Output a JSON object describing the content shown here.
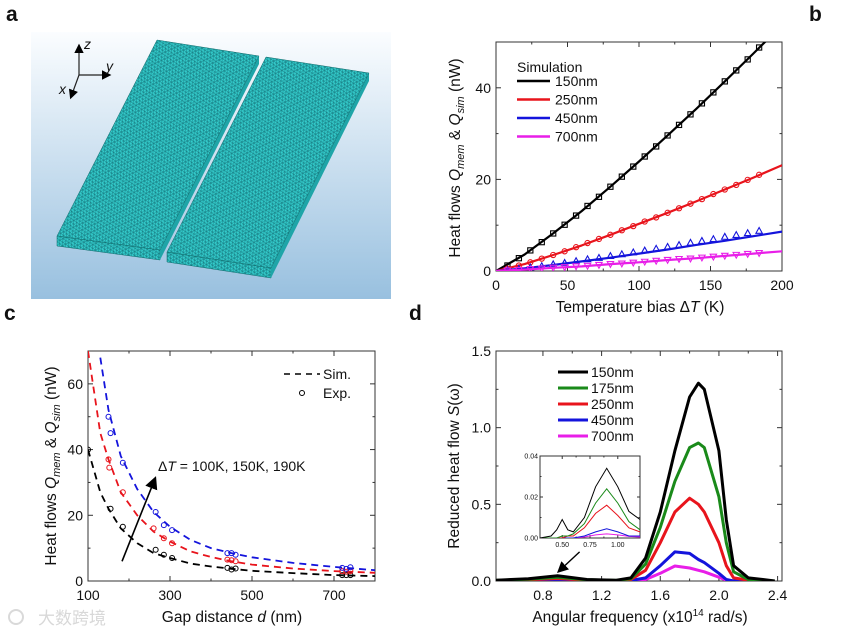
{
  "panels": {
    "a": "a",
    "b": "b",
    "c": "c",
    "d": "d"
  },
  "panel_a": {
    "axes_labels": {
      "z": "z",
      "y": "y",
      "x": "x"
    },
    "slab_color": "#2fc4c4",
    "mesh_color": "#0d5f63"
  },
  "watermark": "大数跨境",
  "chart_data": [
    {
      "type": "line",
      "panel": "b",
      "xlabel_parts": [
        "Temperature bias ",
        "Δ",
        "T",
        " (K)"
      ],
      "ylabel_parts": [
        "Heat flows ",
        "Q",
        "mem",
        " & ",
        "Q",
        "sim",
        " (nW)"
      ],
      "xlim": [
        0,
        200
      ],
      "ylim": [
        0,
        50
      ],
      "xticks": [
        0,
        50,
        100,
        150,
        200
      ],
      "xtick_labels": [
        "0",
        "50",
        "100",
        "150",
        "200"
      ],
      "yticks": [
        0,
        20,
        40
      ],
      "ytick_labels": [
        "0",
        "20",
        "40"
      ],
      "legend": {
        "title": "Simulation",
        "placement": "top-left"
      },
      "line_x": [
        0,
        20,
        40,
        60,
        80,
        100,
        120,
        140,
        160,
        180,
        200
      ],
      "marker_x": [
        8,
        16,
        24,
        32,
        40,
        48,
        56,
        64,
        72,
        80,
        88,
        96,
        104,
        112,
        120,
        128,
        136,
        144,
        152,
        160,
        168,
        176,
        184
      ],
      "series": [
        {
          "name": "150nm",
          "color": "#000000",
          "marker": "square",
          "line_y": [
            0,
            3.6,
            8.2,
            13.1,
            18.4,
            23.9,
            29.6,
            35.4,
            41.4,
            47.5,
            53.7
          ],
          "marker_y": [
            1.2,
            2.8,
            4.5,
            6.3,
            8.2,
            10.1,
            12.1,
            14.2,
            16.2,
            18.4,
            20.6,
            22.8,
            25,
            27.2,
            29.6,
            31.9,
            34.2,
            36.6,
            39,
            41.4,
            43.8,
            46.2,
            48.8
          ]
        },
        {
          "name": "250nm",
          "color": "#e8141c",
          "marker": "circle",
          "line_y": [
            0,
            1.5,
            3.5,
            5.6,
            7.9,
            10.3,
            12.7,
            15.2,
            17.8,
            20.4,
            23.1
          ],
          "marker_y": [
            0.5,
            1.2,
            1.9,
            2.7,
            3.5,
            4.3,
            5.2,
            6.1,
            7,
            7.9,
            8.9,
            9.8,
            10.8,
            11.7,
            12.7,
            13.7,
            14.7,
            15.7,
            16.8,
            17.8,
            18.8,
            19.9,
            21
          ]
        },
        {
          "name": "450nm",
          "color": "#1414dc",
          "marker": "triangle-up",
          "line_y": [
            0,
            0.6,
            1.3,
            2.1,
            2.9,
            3.8,
            4.7,
            5.7,
            6.6,
            7.6,
            8.6
          ],
          "marker_y": [
            0.2,
            0.5,
            0.8,
            1.1,
            1.5,
            1.8,
            2.2,
            2.6,
            2.9,
            3.3,
            3.7,
            4.1,
            4.5,
            4.9,
            5.3,
            5.7,
            6.2,
            6.6,
            7,
            7.5,
            7.9,
            8.3,
            8.8
          ]
        },
        {
          "name": "700nm",
          "color": "#e81ee8",
          "marker": "triangle-down",
          "line_y": [
            0,
            0.3,
            0.7,
            1,
            1.5,
            1.9,
            2.4,
            2.8,
            3.3,
            3.8,
            4.3
          ],
          "marker_y": [
            0.1,
            0.2,
            0.4,
            0.5,
            0.7,
            0.8,
            1,
            1.1,
            1.3,
            1.5,
            1.6,
            1.8,
            2,
            2.2,
            2.4,
            2.6,
            2.7,
            2.9,
            3.1,
            3.3,
            3.5,
            3.7,
            3.9
          ]
        }
      ]
    },
    {
      "type": "scatter",
      "panel": "c",
      "xlabel_parts": [
        "Gap distance ",
        "d",
        " (nm)"
      ],
      "ylabel_parts": [
        "Heat flows ",
        "Q",
        "mem",
        " & ",
        "Q",
        "sim",
        " (nW)"
      ],
      "xlim": [
        100,
        800
      ],
      "ylim": [
        0,
        70
      ],
      "xticks": [
        100,
        300,
        500,
        700
      ],
      "xtick_labels": [
        "100",
        "300",
        "500",
        "700"
      ],
      "yticks": [
        0,
        20,
        40,
        60
      ],
      "ytick_labels": [
        "0",
        "20",
        "40",
        "60"
      ],
      "legend": {
        "sim_label": "Sim.",
        "exp_label": "Exp.",
        "placement": "top-right"
      },
      "annotation": {
        "parts": [
          "Δ",
          "T",
          " = 100K, 150K, 190K"
        ],
        "arrow_from": [
          183,
          6
        ],
        "arrow_to": [
          263,
          31
        ]
      },
      "sim_x": [
        100,
        130,
        150,
        180,
        220,
        260,
        300,
        350,
        400,
        450,
        500,
        600,
        700,
        800
      ],
      "series": [
        {
          "color": "#000000",
          "sim_y": [
            40,
            27,
            22,
            16,
            11.5,
            8.5,
            7,
            5.3,
            4.4,
            3.7,
            3.1,
            2.4,
            1.8,
            1.5
          ],
          "exp_x": [
            100,
            155,
            185,
            265,
            285,
            305,
            440,
            450,
            460,
            720,
            730,
            740
          ],
          "exp_y": [
            40,
            22,
            16.5,
            9.5,
            8,
            7,
            4,
            3.5,
            3.8,
            1.8,
            1.8,
            1.8
          ]
        },
        {
          "color": "#e8141c",
          "sim_y": [
            70,
            45,
            37,
            27,
            20,
            15,
            12,
            9,
            7.3,
            6,
            5,
            3.8,
            3,
            2.5
          ],
          "exp_x": [
            150,
            152,
            185,
            260,
            285,
            305,
            440,
            450,
            460,
            720,
            730,
            740
          ],
          "exp_y": [
            37,
            34.5,
            27,
            16,
            13,
            11.5,
            6.5,
            6.3,
            6,
            3,
            2.8,
            3
          ]
        },
        {
          "color": "#1414dc",
          "sim_y": [
            null,
            68,
            52,
            38,
            28,
            21,
            16.5,
            12.5,
            10,
            8.5,
            7.2,
            5.5,
            4.3,
            3.3
          ],
          "exp_x": [
            150,
            155,
            185,
            265,
            285,
            305,
            440,
            450,
            460,
            720,
            730,
            740
          ],
          "exp_y": [
            50,
            45,
            36,
            21,
            17,
            15.5,
            8.5,
            8.5,
            8,
            4,
            3.7,
            4.2
          ]
        }
      ]
    },
    {
      "type": "line",
      "panel": "d",
      "xlabel_parts": [
        "Angular frequency (x10",
        "14",
        " rad/s)"
      ],
      "ylabel_parts": [
        "Reduced heat flow ",
        "S",
        "(ω)"
      ],
      "xlim": [
        0.48,
        2.43
      ],
      "ylim": [
        0,
        1.5
      ],
      "xticks": [
        0.8,
        1.2,
        1.6,
        2.0,
        2.4
      ],
      "xtick_labels": [
        "0.8",
        "1.2",
        "1.6",
        "2.0",
        "2.4"
      ],
      "yticks": [
        0,
        0.5,
        1.0,
        1.5
      ],
      "ytick_labels": [
        "0.0",
        "0.5",
        "1.0",
        "1.5"
      ],
      "legend": {
        "placement": "top-left"
      },
      "annotation": {
        "arrow_from": [
          1.05,
          0.19
        ],
        "arrow_to": [
          0.91,
          0.065
        ]
      },
      "x": [
        0.48,
        0.7,
        0.9,
        1.1,
        1.3,
        1.4,
        1.5,
        1.6,
        1.7,
        1.8,
        1.86,
        1.9,
        2.0,
        2.05,
        2.1,
        2.2,
        2.3,
        2.38
      ],
      "series": [
        {
          "name": "150nm",
          "color": "#000000",
          "y": [
            0.005,
            0.015,
            0.034,
            0.01,
            0.005,
            0.02,
            0.15,
            0.45,
            0.85,
            1.2,
            1.29,
            1.25,
            0.85,
            0.4,
            0.1,
            0.02,
            0.01,
            0
          ]
        },
        {
          "name": "175nm",
          "color": "#1a8a1a",
          "y": [
            0.004,
            0.012,
            0.025,
            0.008,
            0.004,
            0.015,
            0.11,
            0.35,
            0.65,
            0.87,
            0.9,
            0.87,
            0.55,
            0.25,
            0.06,
            0.01,
            0.005,
            0
          ]
        },
        {
          "name": "250nm",
          "color": "#e8141c",
          "y": [
            0.003,
            0.008,
            0.016,
            0.005,
            0.003,
            0.01,
            0.07,
            0.25,
            0.45,
            0.54,
            0.5,
            0.45,
            0.25,
            0.1,
            0.02,
            0.005,
            0,
            0
          ]
        },
        {
          "name": "450nm",
          "color": "#1414dc",
          "y": [
            0.001,
            0.003,
            0.005,
            0.002,
            0.001,
            0.003,
            0.02,
            0.1,
            0.19,
            0.18,
            0.14,
            0.12,
            0.05,
            0.01,
            0,
            0,
            0,
            0
          ]
        },
        {
          "name": "700nm",
          "color": "#e81ee8",
          "y": [
            0.001,
            0.002,
            0.003,
            0.001,
            0.001,
            0.002,
            0.01,
            0.05,
            0.098,
            0.085,
            0.07,
            0.06,
            0.025,
            0.005,
            0,
            0,
            0,
            0
          ]
        }
      ]
    },
    {
      "type": "line",
      "panel": "d-inset",
      "xlim": [
        0.3,
        1.2
      ],
      "ylim": [
        0,
        0.04
      ],
      "xticks": [
        0.5,
        0.75,
        1.0
      ],
      "xtick_labels": [
        "0.50",
        "0.75",
        "1.00"
      ],
      "yticks": [
        0,
        0.02,
        0.04
      ],
      "ytick_labels": [
        "0.00",
        "0.02",
        "0.04"
      ],
      "x": [
        0.3,
        0.4,
        0.45,
        0.5,
        0.55,
        0.6,
        0.7,
        0.8,
        0.9,
        1.0,
        1.1,
        1.2
      ],
      "series": [
        {
          "color": "#000000",
          "y": [
            0,
            0.001,
            0.004,
            0.009,
            0.004,
            0.003,
            0.01,
            0.025,
            0.034,
            0.025,
            0.013,
            0.009
          ]
        },
        {
          "color": "#1a8a1a",
          "y": [
            0,
            0,
            0,
            0.001,
            0.001,
            0.002,
            0.007,
            0.017,
            0.024,
            0.017,
            0.008,
            0.004
          ]
        },
        {
          "color": "#e8141c",
          "y": [
            0,
            0,
            0,
            0,
            0.001,
            0.001,
            0.005,
            0.012,
            0.016,
            0.011,
            0.005,
            0.003
          ]
        },
        {
          "color": "#1414dc",
          "y": [
            0,
            0,
            0,
            0,
            0,
            0,
            0.001,
            0.003,
            0.0045,
            0.003,
            0.001,
            0.001
          ]
        },
        {
          "color": "#e81ee8",
          "y": [
            0,
            0,
            0,
            0,
            0,
            0,
            0.0005,
            0.0015,
            0.002,
            0.0015,
            0.0008,
            0.0005
          ]
        }
      ]
    }
  ]
}
